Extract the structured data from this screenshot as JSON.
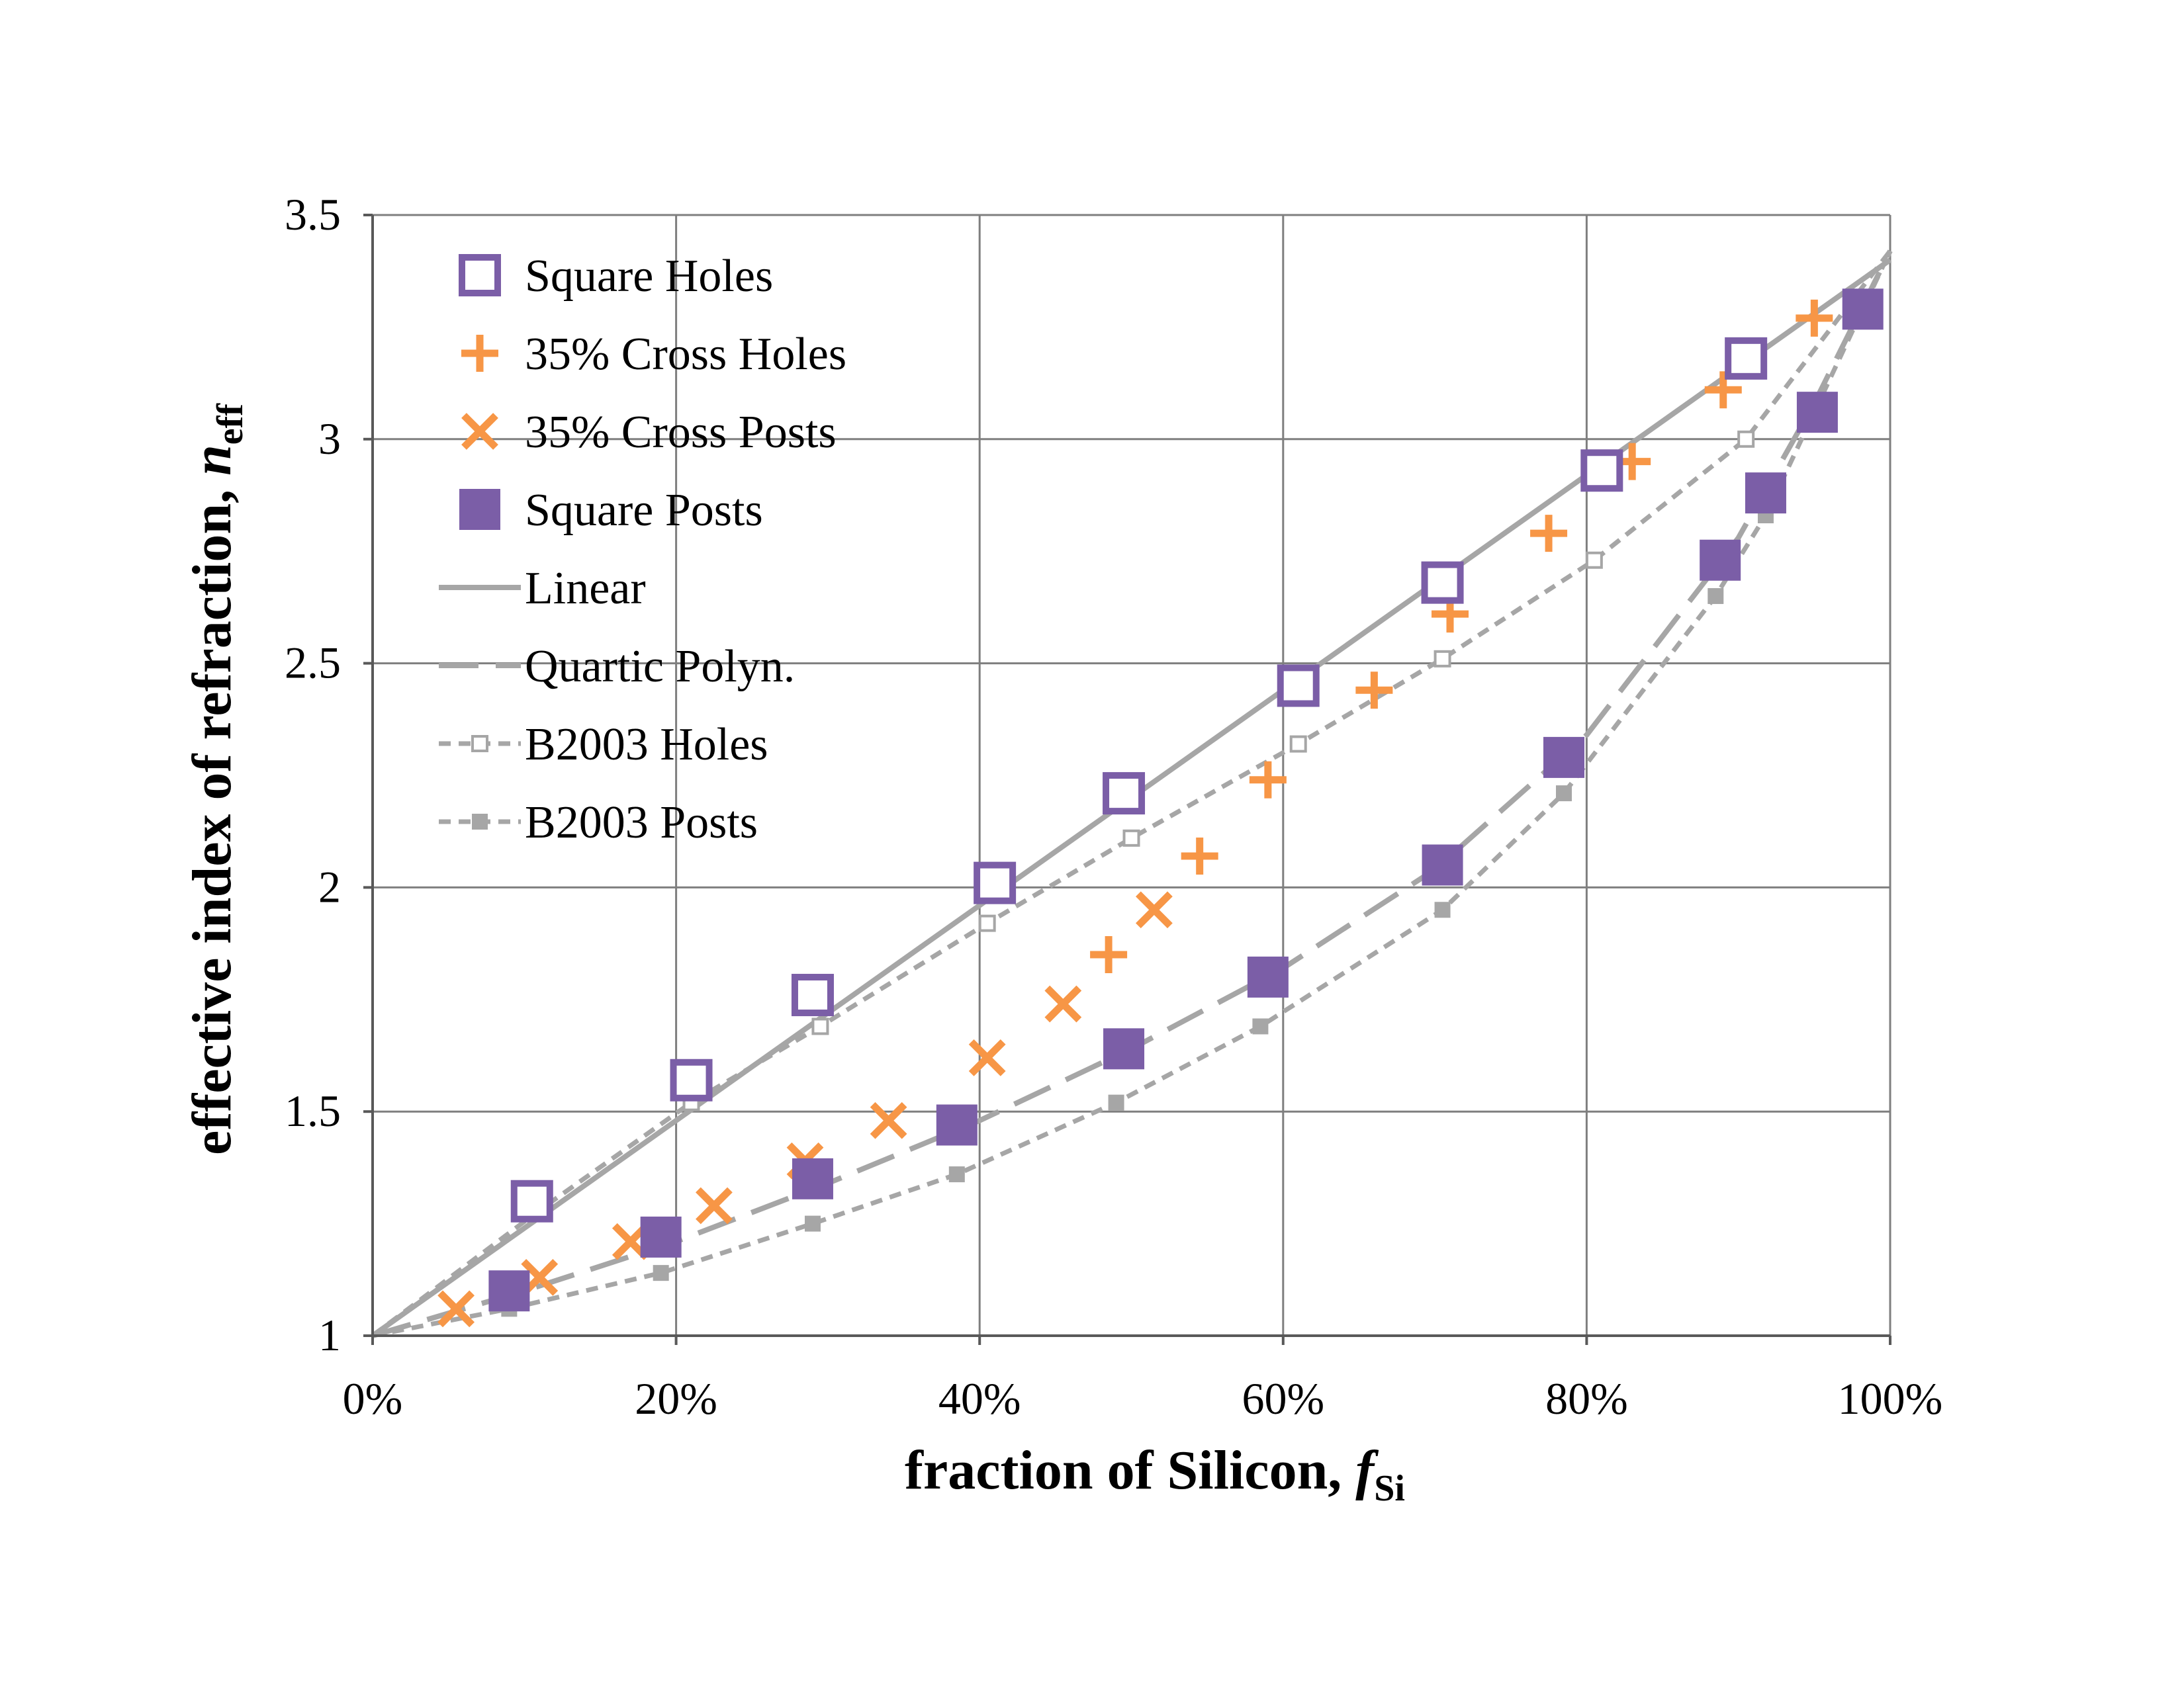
{
  "chart_data": {
    "type": "scatter",
    "xlabel": "fraction of Silicon, ",
    "xlabel_var": "f",
    "xlabel_sub": "Si",
    "ylabel": "effective index of refraction, ",
    "ylabel_var": "n",
    "ylabel_sub": "eff",
    "xlim": [
      0,
      100
    ],
    "ylim": [
      1,
      3.5
    ],
    "x_ticks": [
      0,
      20,
      40,
      60,
      80,
      100
    ],
    "x_tick_labels": [
      "0%",
      "20%",
      "40%",
      "60%",
      "80%",
      "100%"
    ],
    "y_ticks": [
      1,
      1.5,
      2,
      2.5,
      3,
      3.5
    ],
    "y_tick_labels": [
      "1",
      "1.5",
      "2",
      "2.5",
      "3",
      "3.5"
    ],
    "grid": true,
    "legend_position": "top-left",
    "series": [
      {
        "name": "Square Holes",
        "style": "open-square",
        "color": "#7b5ea7",
        "x": [
          10.5,
          21,
          29,
          41,
          49.5,
          61,
          70.5,
          81,
          90.5
        ],
        "y": [
          1.3,
          1.57,
          1.76,
          2.01,
          2.21,
          2.45,
          2.68,
          2.93,
          3.18
        ]
      },
      {
        "name": "35% Cross Holes",
        "style": "plus",
        "color": "#f79646",
        "x": [
          48.5,
          54.5,
          59,
          66,
          71,
          77.5,
          83,
          89,
          95
        ],
        "y": [
          1.85,
          2.07,
          2.24,
          2.44,
          2.61,
          2.79,
          2.95,
          3.11,
          3.27
        ]
      },
      {
        "name": "35% Cross Posts",
        "style": "cross",
        "color": "#f79646",
        "x": [
          5.5,
          11,
          17,
          22.5,
          28.5,
          34,
          40.5,
          45.5,
          51.5
        ],
        "y": [
          1.06,
          1.13,
          1.21,
          1.29,
          1.39,
          1.48,
          1.62,
          1.74,
          1.95
        ]
      },
      {
        "name": "Square Posts",
        "style": "filled-square",
        "color": "#7b5ea7",
        "x": [
          9,
          19,
          29,
          38.5,
          49.5,
          59,
          70.5,
          78.5,
          88.8,
          91.8,
          95.2,
          98.2
        ],
        "y": [
          1.1,
          1.22,
          1.35,
          1.47,
          1.64,
          1.8,
          2.05,
          2.29,
          2.73,
          2.88,
          3.06,
          3.29
        ]
      },
      {
        "name": "Linear",
        "style": "solid-line",
        "color": "#a6a6a6",
        "x": [
          0,
          100
        ],
        "y": [
          1,
          3.4
        ]
      },
      {
        "name": "Quartic Polyn.",
        "style": "long-dash-line",
        "color": "#a6a6a6",
        "x": [
          0,
          10,
          20,
          30,
          40,
          50,
          60,
          70,
          80,
          90,
          95,
          100
        ],
        "y": [
          1,
          1.1,
          1.21,
          1.34,
          1.48,
          1.64,
          1.82,
          2.04,
          2.34,
          2.78,
          3.08,
          3.42
        ]
      },
      {
        "name": "B2003 Holes",
        "style": "short-dash-open-square",
        "color": "#a6a6a6",
        "x": [
          0,
          11,
          21,
          29.5,
          40.5,
          50,
          61,
          70.5,
          80.5,
          90.5,
          100
        ],
        "y": [
          1,
          1.28,
          1.52,
          1.69,
          1.92,
          2.11,
          2.32,
          2.51,
          2.73,
          3.0,
          3.42
        ]
      },
      {
        "name": "B2003 Posts",
        "style": "short-dash-filled-square",
        "color": "#a6a6a6",
        "x": [
          0,
          9,
          19,
          29,
          38.5,
          49,
          58.5,
          70.5,
          78.5,
          88.5,
          91.8,
          95,
          100
        ],
        "y": [
          1,
          1.06,
          1.14,
          1.25,
          1.36,
          1.52,
          1.69,
          1.95,
          2.21,
          2.65,
          2.83,
          3.06,
          3.42
        ]
      }
    ]
  }
}
